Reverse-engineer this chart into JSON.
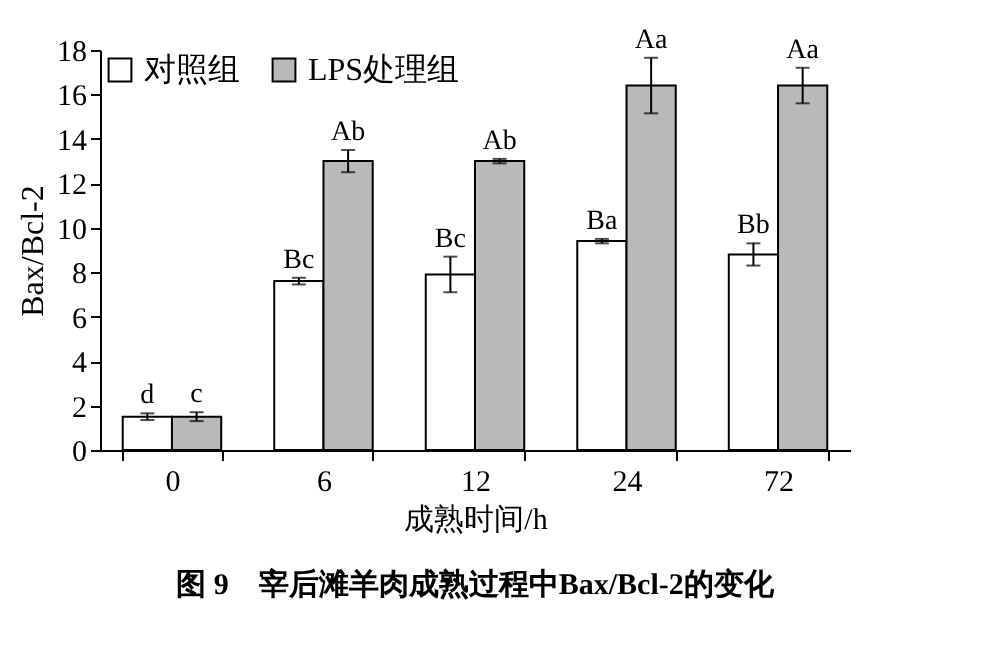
{
  "chart_data": {
    "type": "bar",
    "title": "图 9　宰后滩羊肉成熟过程中Bax/Bcl-2的变化",
    "xlabel": "成熟时间/h",
    "ylabel": "Bax/Bcl-2",
    "categories": [
      "0",
      "6",
      "12",
      "24",
      "72"
    ],
    "series": [
      {
        "name": "对照组",
        "color": "#ffffff",
        "values": [
          1.5,
          7.6,
          7.9,
          9.4,
          8.8
        ],
        "errors": [
          0.15,
          0.15,
          0.8,
          0.1,
          0.5
        ],
        "value_labels": [
          "d",
          "Bc",
          "Bc",
          "Ba",
          "Bb"
        ]
      },
      {
        "name": "LPS处理组",
        "color": "#b8b9bb",
        "values": [
          1.5,
          13.0,
          13.0,
          16.4,
          16.4
        ],
        "errors": [
          0.2,
          0.5,
          0.1,
          1.25,
          0.8
        ],
        "value_labels": [
          "c",
          "Ab",
          "Ab",
          "Aa",
          "Aa"
        ]
      }
    ],
    "ylim": [
      0,
      18
    ],
    "yticks": [
      0,
      2,
      4,
      6,
      8,
      10,
      12,
      14,
      16,
      18
    ],
    "grid": false,
    "legend": "top left"
  }
}
